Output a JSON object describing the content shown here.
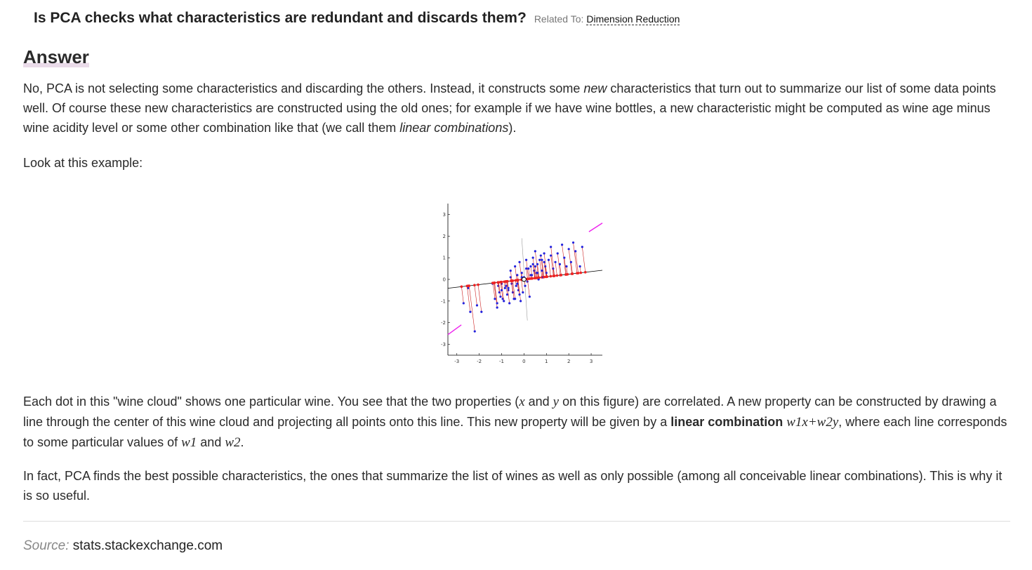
{
  "question": {
    "title": "Is PCA checks what characteristics are redundant and discards them?",
    "related_label": "Related To:",
    "related_link": "Dimension Reduction"
  },
  "answer": {
    "heading": "Answer",
    "p1": {
      "a": "No, PCA is not selecting some characteristics and discarding the others. Instead, it constructs some ",
      "new_word": "new",
      "b": " characteristics that turn out to summarize our list of some data points well. Of course these new characteristics are constructed using the old ones; for example if we have wine bottles, a new characteristic might be computed as wine age minus wine acidity level or some other combination like that (we call them ",
      "linear_combinations": "linear combinations",
      "c": ")."
    },
    "p2": "Look at this example:",
    "p3": {
      "a": "Each dot in this \"wine cloud\" shows one particular wine. You see that the two properties (",
      "x": "x",
      "and1": " and ",
      "y": "y",
      "b": " on this figure) are correlated. A new property can be constructed by drawing a line through the center of this wine cloud and projecting all points onto this line. This new property will be given by a ",
      "bold": "linear combination",
      "space": " ",
      "formula": "w1x+w2y",
      "c": ", where each line corresponds to some particular values of ",
      "w1": "w1",
      "and2": " and ",
      "w2": "w2",
      "d": "."
    },
    "p4": "In fact, PCA finds the best possible characteristics, the ones that summarize the list of wines as well as only possible (among all conceivable linear combinations). This is why it is so useful."
  },
  "source": {
    "label": "Source:",
    "site": "stats.stackexchange.com"
  },
  "colors": {
    "points": "#2222dd",
    "projections": "#ee2222",
    "residual_lines": "#cc2222",
    "pc_line": "#000000",
    "rotating_line": "#ee22ee"
  },
  "chart_data": {
    "type": "scatter",
    "x_ticks": [
      "-3",
      "-2",
      "-1",
      "0",
      "1",
      "2",
      "3"
    ],
    "y_ticks": [
      "3",
      "2",
      "1",
      "0",
      "-1",
      "-2",
      "-3"
    ],
    "xlim": [
      -3.4,
      3.5
    ],
    "ylim": [
      -3.5,
      3.5
    ],
    "x": [
      -2.7,
      -2.5,
      -2.4,
      -2.2,
      -2.1,
      -1.9,
      -1.4,
      -1.3,
      -1.2,
      -1.15,
      -1.1,
      -1.05,
      -1.0,
      -0.95,
      -0.9,
      -0.85,
      -0.8,
      -0.75,
      -0.7,
      -0.65,
      -0.6,
      -0.55,
      -0.5,
      -0.45,
      -0.4,
      -0.35,
      -0.3,
      -0.25,
      -0.2,
      -0.15,
      -0.1,
      -0.05,
      0.0,
      0.05,
      0.1,
      0.15,
      0.2,
      0.25,
      0.3,
      0.35,
      0.4,
      0.45,
      0.5,
      0.55,
      0.6,
      0.65,
      0.7,
      0.75,
      0.8,
      0.85,
      0.9,
      0.95,
      1.0,
      1.1,
      1.2,
      1.3,
      1.4,
      1.5,
      1.6,
      1.7,
      1.8,
      1.9,
      2.0,
      2.1,
      2.2,
      2.3,
      2.5,
      2.6,
      -1.0,
      -0.7,
      -0.4,
      -0.2,
      0.3,
      0.6,
      0.9,
      1.2,
      -0.8,
      -0.3,
      0.1,
      0.5,
      0.8,
      -1.2,
      -0.6,
      -0.1,
      0.4
    ],
    "y": [
      -1.1,
      -0.4,
      -1.5,
      -2.4,
      -1.2,
      -1.5,
      -0.2,
      -0.9,
      -1.3,
      -0.3,
      -0.6,
      -0.8,
      -0.2,
      -0.9,
      -1.0,
      -0.4,
      -0.1,
      -0.7,
      -0.5,
      -1.1,
      0.1,
      -0.2,
      -0.6,
      -0.9,
      0.6,
      -0.3,
      0.2,
      -0.5,
      0.8,
      -1.0,
      0.3,
      -0.6,
      0.1,
      -0.3,
      0.9,
      -0.1,
      0.5,
      -0.8,
      0.6,
      0.2,
      1.0,
      0.4,
      1.3,
      0.3,
      0.7,
      0.0,
      0.9,
      1.1,
      0.4,
      0.1,
      1.2,
      0.6,
      0.3,
      0.9,
      1.5,
      0.5,
      0.8,
      1.2,
      0.7,
      1.6,
      1.0,
      0.6,
      1.4,
      0.8,
      1.7,
      1.3,
      0.6,
      1.5,
      -0.5,
      -0.4,
      -0.9,
      -0.7,
      0.2,
      0.3,
      0.8,
      1.1,
      -0.3,
      -0.2,
      0.5,
      0.6,
      0.9,
      -1.1,
      0.4,
      0.1,
      0.7
    ],
    "pc_line_slope": 0.12,
    "center": [
      0.0,
      0.0
    ],
    "grid": false
  }
}
